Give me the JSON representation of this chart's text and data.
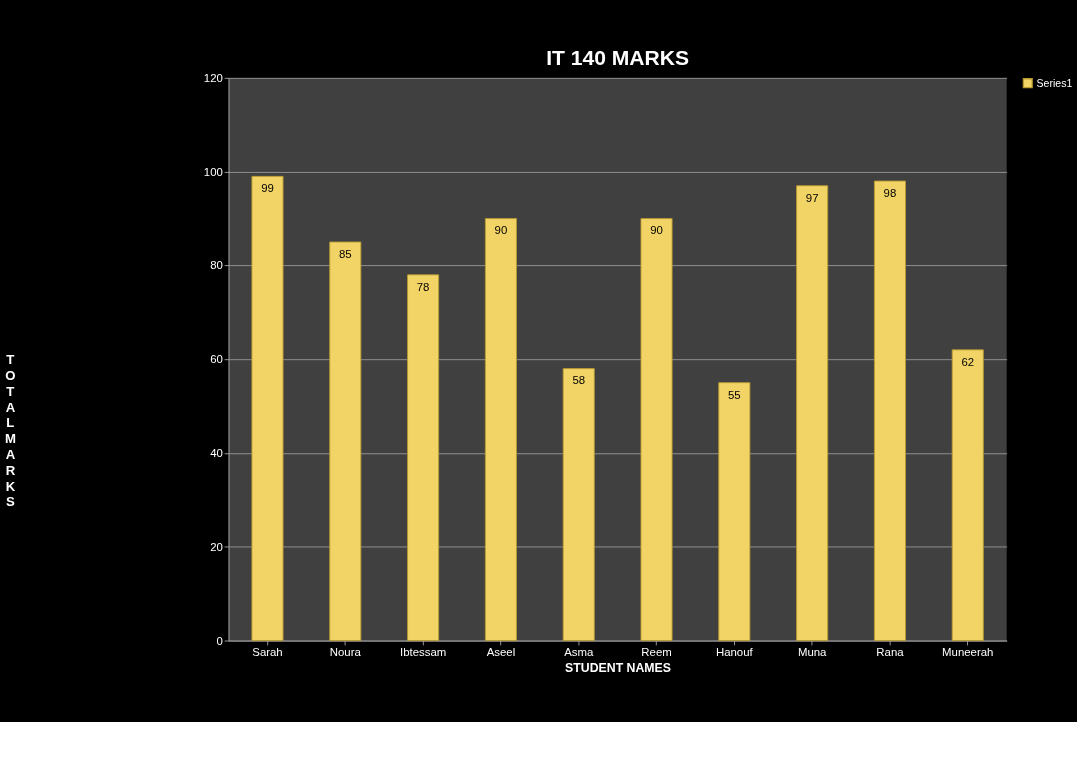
{
  "chart_data": {
    "type": "bar",
    "title": "IT 140 MARKS",
    "xlabel": "STUDENT NAMES",
    "ylabel": "TOTAL MARKS",
    "categories": [
      "Sarah",
      "Noura",
      "Ibtessam",
      "Aseel",
      "Asma",
      "Reem",
      "Hanouf",
      "Muna",
      "Rana",
      "Muneerah"
    ],
    "series": [
      {
        "name": "Series1",
        "color": "#f2d466",
        "values": [
          99,
          85,
          78,
          90,
          58,
          90,
          55,
          97,
          98,
          62
        ]
      }
    ],
    "ylim": [
      0,
      120
    ],
    "yticks": [
      0,
      20,
      40,
      60,
      80,
      100,
      120
    ],
    "grid": "y",
    "legend": "right",
    "data_labels": true
  }
}
